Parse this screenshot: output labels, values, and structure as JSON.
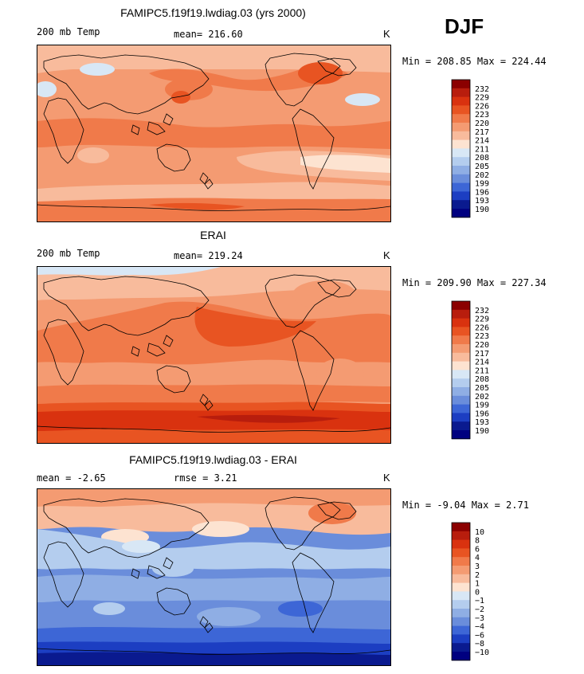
{
  "season": "DJF",
  "panels": [
    {
      "title": "FAMIPC5.f19f19.lwdiag.03 (yrs 2000)",
      "left": "200 mb Temp",
      "mid": "mean= 216.60",
      "unit": "K",
      "minmax": "Min = 208.85 Max = 224.44",
      "scale": "abs"
    },
    {
      "title": "ERAI",
      "left": "200 mb Temp",
      "mid": "mean= 219.24",
      "unit": "K",
      "minmax": "Min = 209.90 Max = 227.34",
      "scale": "abs"
    },
    {
      "title": "FAMIPC5.f19f19.lwdiag.03 - ERAI",
      "left": "mean =   -2.65",
      "mid": "rmse =    3.21",
      "unit": "K",
      "minmax": "Min =  -9.04 Max =   2.71",
      "scale": "diff"
    }
  ],
  "colorbar_abs": {
    "labels": [
      "232",
      "229",
      "226",
      "223",
      "220",
      "217",
      "214",
      "211",
      "208",
      "205",
      "202",
      "199",
      "196",
      "193",
      "190"
    ],
    "colors": [
      "#8b0000",
      "#b81d0d",
      "#d9320f",
      "#e85422",
      "#f07a4a",
      "#f49b72",
      "#f8bb9c",
      "#fde3d1",
      "#d8e7f5",
      "#b4cdee",
      "#8faee4",
      "#6a8ddb",
      "#3d66d6",
      "#1c3ec2",
      "#0a1a8f",
      "#000080"
    ]
  },
  "colorbar_diff": {
    "labels": [
      "10",
      "8",
      "6",
      "4",
      "3",
      "2",
      "1",
      "0",
      "−1",
      "−2",
      "−3",
      "−4",
      "−6",
      "−8",
      "−10"
    ],
    "colors": [
      "#8b0000",
      "#b81d0d",
      "#d9320f",
      "#e85422",
      "#f07a4a",
      "#f49b72",
      "#f8bb9c",
      "#fde3d1",
      "#d8e7f5",
      "#b4cdee",
      "#8faee4",
      "#6a8ddb",
      "#3d66d6",
      "#1c3ec2",
      "#0a1a8f",
      "#000080"
    ]
  },
  "chart_data": [
    {
      "type": "heatmap",
      "title": "FAMIPC5.f19f19.lwdiag.03 (yrs 2000)",
      "variable": "200 mb Temp",
      "units": "K",
      "mean": 216.6,
      "min": 208.85,
      "max": 224.44,
      "levels": [
        190,
        193,
        196,
        199,
        202,
        205,
        208,
        211,
        214,
        217,
        220,
        223,
        226,
        229,
        232
      ],
      "projection": "cylindrical equidistant, Pacific-centred"
    },
    {
      "type": "heatmap",
      "title": "ERAI",
      "variable": "200 mb Temp",
      "units": "K",
      "mean": 219.24,
      "min": 209.9,
      "max": 227.34,
      "levels": [
        190,
        193,
        196,
        199,
        202,
        205,
        208,
        211,
        214,
        217,
        220,
        223,
        226,
        229,
        232
      ],
      "projection": "cylindrical equidistant, Pacific-centred"
    },
    {
      "type": "heatmap",
      "title": "FAMIPC5.f19f19.lwdiag.03 - ERAI",
      "units": "K",
      "mean": -2.65,
      "rmse": 3.21,
      "min": -9.04,
      "max": 2.71,
      "levels": [
        -10,
        -8,
        -6,
        -4,
        -3,
        -2,
        -1,
        0,
        1,
        2,
        3,
        4,
        6,
        8,
        10
      ],
      "projection": "cylindrical equidistant, Pacific-centred"
    }
  ]
}
